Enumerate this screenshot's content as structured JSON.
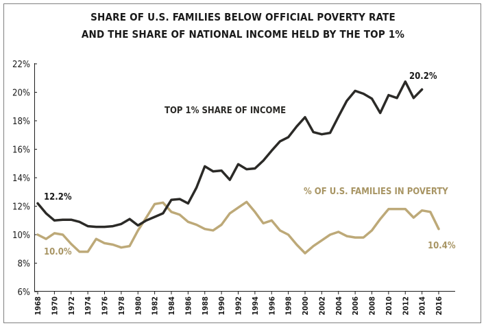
{
  "chart_data": {
    "type": "line",
    "title_line1": "SHARE OF U.S. FAMILIES BELOW OFFICIAL POVERTY RATE",
    "title_line2": "AND THE SHARE OF NATIONAL INCOME HELD BY THE TOP 1%",
    "xlim": [
      1968,
      2016
    ],
    "ylim": [
      6,
      22
    ],
    "y_ticks": [
      6,
      8,
      10,
      12,
      14,
      16,
      18,
      20,
      22
    ],
    "y_tick_labels": [
      "6%",
      "8%",
      "10%",
      "12%",
      "14%",
      "16%",
      "18%",
      "20%",
      "22%"
    ],
    "x_ticks": [
      1968,
      1970,
      1972,
      1974,
      1976,
      1978,
      1980,
      1982,
      1984,
      1986,
      1988,
      1990,
      1992,
      1994,
      1996,
      1998,
      2000,
      2002,
      2004,
      2006,
      2008,
      2010,
      2012,
      2014,
      2016
    ],
    "x_tick_labels": [
      "1968",
      "1970",
      "1972",
      "1974",
      "1976",
      "1978",
      "1980",
      "1982",
      "1984",
      "1986",
      "1988",
      "1990",
      "1992",
      "1994",
      "1996",
      "1998",
      "2000",
      "2002",
      "2004",
      "2006",
      "2008",
      "2010",
      "2012",
      "2014",
      "2016"
    ],
    "grid": false,
    "colors": {
      "top1": "#2b2a27",
      "poverty": "#bda978",
      "text": "#1a1a1a"
    },
    "series": [
      {
        "name": "TOP 1% SHARE OF INCOME",
        "x": [
          1968,
          1969,
          1970,
          1971,
          1972,
          1973,
          1974,
          1975,
          1976,
          1977,
          1978,
          1979,
          1980,
          1981,
          1982,
          1983,
          1984,
          1985,
          1986,
          1987,
          1988,
          1989,
          1990,
          1991,
          1992,
          1993,
          1994,
          1995,
          1996,
          1997,
          1998,
          1999,
          2000,
          2001,
          2002,
          2003,
          2004,
          2005,
          2006,
          2007,
          2008,
          2009,
          2010,
          2011,
          2012,
          2013,
          2014
        ],
        "values": [
          12.2,
          11.5,
          11.0,
          11.05,
          11.05,
          10.9,
          10.6,
          10.55,
          10.55,
          10.6,
          10.75,
          11.1,
          10.65,
          11.0,
          11.25,
          11.5,
          12.45,
          12.5,
          12.2,
          13.3,
          14.8,
          14.45,
          14.5,
          13.85,
          14.95,
          14.6,
          14.65,
          15.2,
          15.9,
          16.55,
          16.85,
          17.6,
          18.25,
          17.2,
          17.05,
          17.15,
          18.3,
          19.4,
          20.1,
          19.9,
          19.55,
          18.55,
          19.8,
          19.6,
          20.75,
          19.6,
          20.2
        ]
      },
      {
        "name": "% OF U.S. FAMILIES IN POVERTY",
        "x": [
          1968,
          1969,
          1970,
          1971,
          1972,
          1973,
          1974,
          1975,
          1976,
          1977,
          1978,
          1979,
          1980,
          1981,
          1982,
          1983,
          1984,
          1985,
          1986,
          1987,
          1988,
          1989,
          1990,
          1991,
          1992,
          1993,
          1994,
          1995,
          1996,
          1997,
          1998,
          1999,
          2000,
          2001,
          2002,
          2003,
          2004,
          2005,
          2006,
          2007,
          2008,
          2009,
          2010,
          2011,
          2012,
          2013,
          2014,
          2015,
          2016
        ],
        "values": [
          10.0,
          9.7,
          10.1,
          10.0,
          9.35,
          8.8,
          8.8,
          9.7,
          9.4,
          9.3,
          9.1,
          9.2,
          10.3,
          11.2,
          12.15,
          12.25,
          11.6,
          11.4,
          10.9,
          10.7,
          10.4,
          10.3,
          10.7,
          11.5,
          11.9,
          12.3,
          11.6,
          10.8,
          11.0,
          10.3,
          10.0,
          9.3,
          8.7,
          9.2,
          9.6,
          10.0,
          10.2,
          9.9,
          9.8,
          9.8,
          10.3,
          11.1,
          11.8,
          11.8,
          11.8,
          11.2,
          11.7,
          11.6,
          10.4
        ]
      }
    ],
    "annotations": {
      "top1_label": "TOP 1% SHARE OF INCOME",
      "poverty_label": "% OF U.S. FAMILIES IN POVERTY",
      "top1_start": "12.2%",
      "top1_end": "20.2%",
      "poverty_start": "10.0%",
      "poverty_end": "10.4%"
    }
  }
}
